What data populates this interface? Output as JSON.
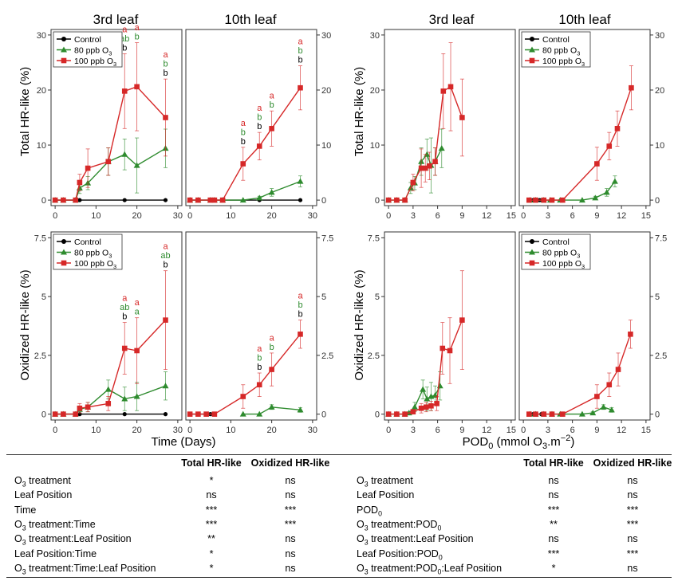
{
  "colors": {
    "control": "#000000",
    "ppb80": "#2e8b2e",
    "ppb100": "#d62828"
  },
  "column_titles": [
    "3rd leaf",
    "10th leaf",
    "3rd leaf",
    "10th leaf"
  ],
  "legend": [
    "Control",
    "80 ppb O3",
    "100 ppb O3"
  ],
  "xlabel_time": "Time (Days)",
  "xlabel_pod": "POD0 (mmol O3.m−2)",
  "ylabel_total": "Total HR-like (%)",
  "ylabel_oxidized": "Oxidized HR-like (%)",
  "chart_data": [
    {
      "type": "line",
      "title": "3rd leaf",
      "ylabel": "Total HR-like (%)",
      "xlim": [
        -1,
        31
      ],
      "ylim": [
        -1,
        31
      ],
      "xticks": [
        0,
        10,
        20,
        30
      ],
      "yticks": [
        0,
        10,
        20,
        30
      ],
      "series": [
        {
          "name": "Control",
          "x": [
            0,
            2,
            5,
            6,
            17,
            27
          ],
          "y": [
            0,
            0,
            0,
            0,
            0,
            0
          ],
          "err": [
            0,
            0,
            0,
            0,
            0,
            0
          ]
        },
        {
          "name": "80 ppb O3",
          "x": [
            0,
            2,
            5,
            6,
            8,
            13,
            17,
            20,
            27
          ],
          "y": [
            0,
            0,
            0,
            2.2,
            3.1,
            7,
            8.3,
            6.3,
            9.4
          ],
          "err": [
            0,
            0,
            0,
            1.0,
            1.2,
            2.5,
            2.8,
            5.0,
            3.5
          ]
        },
        {
          "name": "100 ppb O3",
          "x": [
            0,
            2,
            5,
            6,
            8,
            13,
            17,
            20,
            27
          ],
          "y": [
            0,
            0,
            0,
            3.2,
            5.8,
            7,
            19.8,
            20.6,
            15
          ],
          "err": [
            0,
            0,
            0,
            1.5,
            3.5,
            2.5,
            6.8,
            8.0,
            7.0
          ]
        }
      ],
      "annotations": [
        {
          "x": 17,
          "lines": [
            [
              "a",
              "ppb100"
            ],
            [
              "ab",
              "ppb80"
            ],
            [
              "b",
              "control"
            ]
          ]
        },
        {
          "x": 20,
          "lines": [
            [
              "a",
              "ppb100"
            ],
            [
              "b",
              "ppb80"
            ]
          ]
        },
        {
          "x": 27,
          "lines": [
            [
              "a",
              "ppb100"
            ],
            [
              "b",
              "ppb80"
            ],
            [
              "b",
              "control"
            ]
          ]
        }
      ]
    },
    {
      "type": "line",
      "title": "10th leaf",
      "xlim": [
        -1,
        31
      ],
      "ylim": [
        -1,
        31
      ],
      "xticks": [
        0,
        10,
        20,
        30
      ],
      "yticks": [
        0,
        10,
        20,
        30
      ],
      "series": [
        {
          "name": "Control",
          "x": [
            0,
            2,
            5,
            6,
            17,
            27
          ],
          "y": [
            0,
            0,
            0,
            0,
            0,
            0
          ],
          "err": [
            0,
            0,
            0,
            0,
            0,
            0
          ]
        },
        {
          "name": "80 ppb O3",
          "x": [
            0,
            2,
            5,
            6,
            8,
            13,
            17,
            20,
            27
          ],
          "y": [
            0,
            0,
            0,
            0,
            0,
            0,
            0.4,
            1.4,
            3.4
          ],
          "err": [
            0,
            0,
            0,
            0,
            0,
            0,
            0.3,
            0.7,
            1.0
          ]
        },
        {
          "name": "100 ppb O3",
          "x": [
            0,
            2,
            5,
            6,
            8,
            13,
            17,
            20,
            27
          ],
          "y": [
            0,
            0,
            0,
            0,
            0,
            6.6,
            9.8,
            13,
            20.4
          ],
          "err": [
            0,
            0,
            0,
            0,
            0,
            3.0,
            2.5,
            3.2,
            4.0
          ]
        }
      ],
      "annotations": [
        {
          "x": 13,
          "lines": [
            [
              "a",
              "ppb100"
            ],
            [
              "b",
              "ppb80"
            ],
            [
              "b",
              "control"
            ]
          ]
        },
        {
          "x": 17,
          "lines": [
            [
              "a",
              "ppb100"
            ],
            [
              "b",
              "ppb80"
            ],
            [
              "b",
              "control"
            ]
          ]
        },
        {
          "x": 20,
          "lines": [
            [
              "a",
              "ppb100"
            ],
            [
              "b",
              "ppb80"
            ]
          ]
        },
        {
          "x": 27,
          "lines": [
            [
              "a",
              "ppb100"
            ],
            [
              "b",
              "ppb80"
            ],
            [
              "b",
              "control"
            ]
          ]
        }
      ]
    },
    {
      "type": "line",
      "title": "3rd leaf",
      "ylabel": "Total HR-like (%)",
      "xlim": [
        -0.5,
        15.5
      ],
      "ylim": [
        -1,
        31
      ],
      "xticks": [
        0,
        3,
        6,
        9,
        12,
        15
      ],
      "yticks": [
        0,
        10,
        20,
        30
      ],
      "series": [
        {
          "name": "80 ppb O3",
          "x": [
            0,
            1,
            2,
            2.7,
            3.2,
            4,
            4.7,
            5.2,
            5.7,
            6.5
          ],
          "y": [
            0,
            0,
            0,
            2.2,
            3.1,
            7,
            8.3,
            6.3,
            7,
            9.4
          ],
          "err": [
            0,
            0,
            0,
            1.0,
            1.2,
            2.5,
            2.8,
            5.0,
            2.5,
            3.5
          ]
        },
        {
          "name": "100 ppb O3",
          "x": [
            0,
            1,
            2,
            3,
            4,
            4.5,
            5,
            5.7,
            6.7,
            7.6,
            9
          ],
          "y": [
            0,
            0,
            0,
            3.2,
            5.8,
            5.8,
            6.2,
            7,
            19.8,
            20.6,
            15
          ],
          "err": [
            0,
            0,
            0,
            1.5,
            3.5,
            2.5,
            2.5,
            2.5,
            6.8,
            8.0,
            7.0
          ]
        }
      ]
    },
    {
      "type": "line",
      "title": "10th leaf",
      "xlim": [
        -0.5,
        15.5
      ],
      "ylim": [
        -1,
        31
      ],
      "xticks": [
        0,
        3,
        6,
        9,
        12,
        15
      ],
      "yticks": [
        0,
        10,
        20,
        30
      ],
      "series": [
        {
          "name": "Control",
          "x": [
            0.7,
            1.2,
            2
          ],
          "y": [
            0,
            0,
            0
          ],
          "err": [
            0,
            0,
            0
          ]
        },
        {
          "name": "80 ppb O3",
          "x": [
            0.8,
            1.5,
            2.5,
            3.3,
            4.5,
            7.2,
            8.8,
            10.2,
            11.2
          ],
          "y": [
            0,
            0,
            0,
            0,
            0,
            0,
            0.4,
            1.4,
            3.4
          ],
          "err": [
            0,
            0,
            0,
            0,
            0,
            0,
            0.3,
            0.7,
            1.0
          ]
        },
        {
          "name": "100 ppb O3",
          "x": [
            0.7,
            1.5,
            2.5,
            3.5,
            4.8,
            9,
            10.5,
            11.5,
            13.2
          ],
          "y": [
            0,
            0,
            0,
            0,
            0,
            6.6,
            9.8,
            13,
            20.4
          ],
          "err": [
            0,
            0,
            0,
            0,
            0,
            3.0,
            2.5,
            3.2,
            4.0
          ]
        }
      ]
    },
    {
      "type": "line",
      "title": "3rd leaf",
      "ylabel": "Oxidized HR-like (%)",
      "xlabel": "Time (Days)",
      "xlim": [
        -1,
        31
      ],
      "ylim": [
        -0.25,
        7.75
      ],
      "xticks": [
        0,
        10,
        20,
        30
      ],
      "yticks": [
        0,
        2.5,
        5,
        7.5
      ],
      "series": [
        {
          "name": "Control",
          "x": [
            0,
            2,
            5,
            6,
            17,
            27
          ],
          "y": [
            0,
            0,
            0,
            0,
            0,
            0
          ],
          "err": [
            0,
            0,
            0,
            0,
            0,
            0
          ]
        },
        {
          "name": "80 ppb O3",
          "x": [
            0,
            2,
            5,
            6,
            8,
            13,
            17,
            20,
            27
          ],
          "y": [
            0,
            0,
            0,
            0.2,
            0.3,
            1.05,
            0.65,
            0.75,
            1.2
          ],
          "err": [
            0,
            0,
            0,
            0.15,
            0.2,
            0.4,
            0.5,
            0.6,
            0.6
          ]
        },
        {
          "name": "100 ppb O3",
          "x": [
            0,
            2,
            5,
            6,
            8,
            13,
            17,
            20,
            27
          ],
          "y": [
            0,
            0,
            0,
            0.25,
            0.3,
            0.45,
            2.8,
            2.7,
            4.0
          ],
          "err": [
            0,
            0,
            0,
            0.2,
            0.2,
            0.3,
            1.1,
            1.4,
            2.1
          ]
        }
      ],
      "annotations": [
        {
          "x": 17,
          "lines": [
            [
              "a",
              "ppb100"
            ],
            [
              "ab",
              "ppb80"
            ],
            [
              "b",
              "control"
            ]
          ]
        },
        {
          "x": 20,
          "lines": [
            [
              "a",
              "ppb100"
            ],
            [
              "a",
              "ppb80"
            ]
          ]
        },
        {
          "x": 27,
          "lines": [
            [
              "a",
              "ppb100"
            ],
            [
              "ab",
              "ppb80"
            ],
            [
              "b",
              "control"
            ]
          ]
        }
      ]
    },
    {
      "type": "line",
      "title": "10th leaf",
      "xlim": [
        -1,
        31
      ],
      "ylim": [
        -0.25,
        7.75
      ],
      "xticks": [
        0,
        10,
        20,
        30
      ],
      "yticks": [
        0,
        2.5,
        5,
        7.5
      ],
      "series": [
        {
          "name": "Control",
          "x": [
            0,
            2,
            5,
            6
          ],
          "y": [
            0,
            0,
            0,
            0
          ],
          "err": [
            0,
            0,
            0,
            0
          ]
        },
        {
          "name": "80 ppb O3",
          "x": [
            13,
            17,
            20,
            27
          ],
          "y": [
            0,
            0,
            0.3,
            0.18
          ],
          "err": [
            0,
            0,
            0.1,
            0.1
          ]
        },
        {
          "name": "100 ppb O3",
          "x": [
            0,
            2,
            4,
            6,
            13,
            17,
            20,
            27
          ],
          "y": [
            0,
            0,
            0,
            0,
            0.75,
            1.25,
            1.9,
            3.4
          ],
          "err": [
            0,
            0,
            0,
            0,
            0.5,
            0.5,
            0.7,
            0.6
          ]
        }
      ],
      "annotations": [
        {
          "x": 17,
          "lines": [
            [
              "a",
              "ppb100"
            ],
            [
              "b",
              "ppb80"
            ],
            [
              "b",
              "control"
            ]
          ]
        },
        {
          "x": 20,
          "lines": [
            [
              "a",
              "ppb100"
            ],
            [
              "b",
              "ppb80"
            ]
          ]
        },
        {
          "x": 27,
          "lines": [
            [
              "a",
              "ppb100"
            ],
            [
              "b",
              "ppb80"
            ],
            [
              "b",
              "control"
            ]
          ]
        }
      ]
    },
    {
      "type": "line",
      "title": "3rd leaf",
      "ylabel": "Oxidized HR-like (%)",
      "xlim": [
        -0.5,
        15.5
      ],
      "ylim": [
        -0.25,
        7.75
      ],
      "xticks": [
        0,
        3,
        6,
        9,
        12,
        15
      ],
      "yticks": [
        0,
        2.5,
        5,
        7.5
      ],
      "series": [
        {
          "name": "80 ppb O3",
          "x": [
            0,
            1,
            2,
            2.5,
            3.2,
            4.2,
            4.7,
            5.2,
            5.7,
            6.3
          ],
          "y": [
            0,
            0,
            0,
            0.05,
            0.3,
            1.05,
            0.65,
            0.75,
            0.8,
            1.2
          ],
          "err": [
            0,
            0,
            0,
            0.05,
            0.2,
            0.4,
            0.5,
            0.6,
            0.4,
            0.6
          ]
        },
        {
          "name": "100 ppb O3",
          "x": [
            0,
            1,
            2,
            3,
            4,
            4.6,
            5.2,
            5.9,
            6.6,
            7.5,
            9
          ],
          "y": [
            0,
            0,
            0,
            0.1,
            0.25,
            0.3,
            0.35,
            0.45,
            2.8,
            2.7,
            4.0
          ],
          "err": [
            0,
            0,
            0,
            0.05,
            0.2,
            0.2,
            0.2,
            0.3,
            1.1,
            1.4,
            2.1
          ]
        }
      ]
    },
    {
      "type": "line",
      "title": "10th leaf",
      "xlabel": "POD0 (mmol O3.m−2)",
      "xlim": [
        -0.5,
        15.5
      ],
      "ylim": [
        -0.25,
        7.75
      ],
      "xticks": [
        0,
        3,
        6,
        9,
        12,
        15
      ],
      "yticks": [
        0,
        2.5,
        5,
        7.5
      ],
      "series": [
        {
          "name": "Control",
          "x": [
            0.7,
            1.2,
            2.2
          ],
          "y": [
            0,
            0,
            0
          ],
          "err": [
            0,
            0,
            0
          ]
        },
        {
          "name": "80 ppb O3",
          "x": [
            0.8,
            1.5,
            2.5,
            3.5,
            4.5,
            7.2,
            8.5,
            9.8,
            10.8
          ],
          "y": [
            0,
            0,
            0,
            0,
            0,
            0,
            0.05,
            0.3,
            0.18
          ],
          "err": [
            0,
            0,
            0,
            0,
            0,
            0,
            0.05,
            0.1,
            0.1
          ]
        },
        {
          "name": "100 ppb O3",
          "x": [
            0.7,
            1.5,
            2.5,
            3.5,
            4.8,
            9,
            10.5,
            11.6,
            13.1
          ],
          "y": [
            0,
            0,
            0,
            0,
            0,
            0.75,
            1.25,
            1.9,
            3.4
          ],
          "err": [
            0,
            0,
            0,
            0,
            0,
            0.5,
            0.5,
            0.7,
            0.6
          ]
        }
      ]
    }
  ],
  "stats_left": {
    "headers": [
      "Total HR-like",
      "Oxidized HR-like"
    ],
    "rows": [
      [
        "O3 treatment",
        "*",
        "ns"
      ],
      [
        "Leaf Position",
        "ns",
        "ns"
      ],
      [
        "Time",
        "***",
        "***"
      ],
      [
        "O3 treatment:Time",
        "***",
        "***"
      ],
      [
        "O3 treatment:Leaf Position",
        "**",
        "ns"
      ],
      [
        "Leaf Position:Time",
        "*",
        "ns"
      ],
      [
        "O3 treatment:Time:Leaf Position",
        "*",
        "ns"
      ]
    ]
  },
  "stats_right": {
    "headers": [
      "Total HR-like",
      "Oxidized HR-like"
    ],
    "rows": [
      [
        "O3 treatment",
        "ns",
        "ns"
      ],
      [
        "Leaf Position",
        "ns",
        "ns"
      ],
      [
        "POD0",
        "***",
        "***"
      ],
      [
        "O3 treatment:POD0",
        "**",
        "***"
      ],
      [
        "O3 treatment:Leaf Position",
        "ns",
        "ns"
      ],
      [
        "Leaf Position:POD0",
        "***",
        "***"
      ],
      [
        "O3 treatment:POD0:Leaf Position",
        "*",
        "ns"
      ]
    ]
  }
}
